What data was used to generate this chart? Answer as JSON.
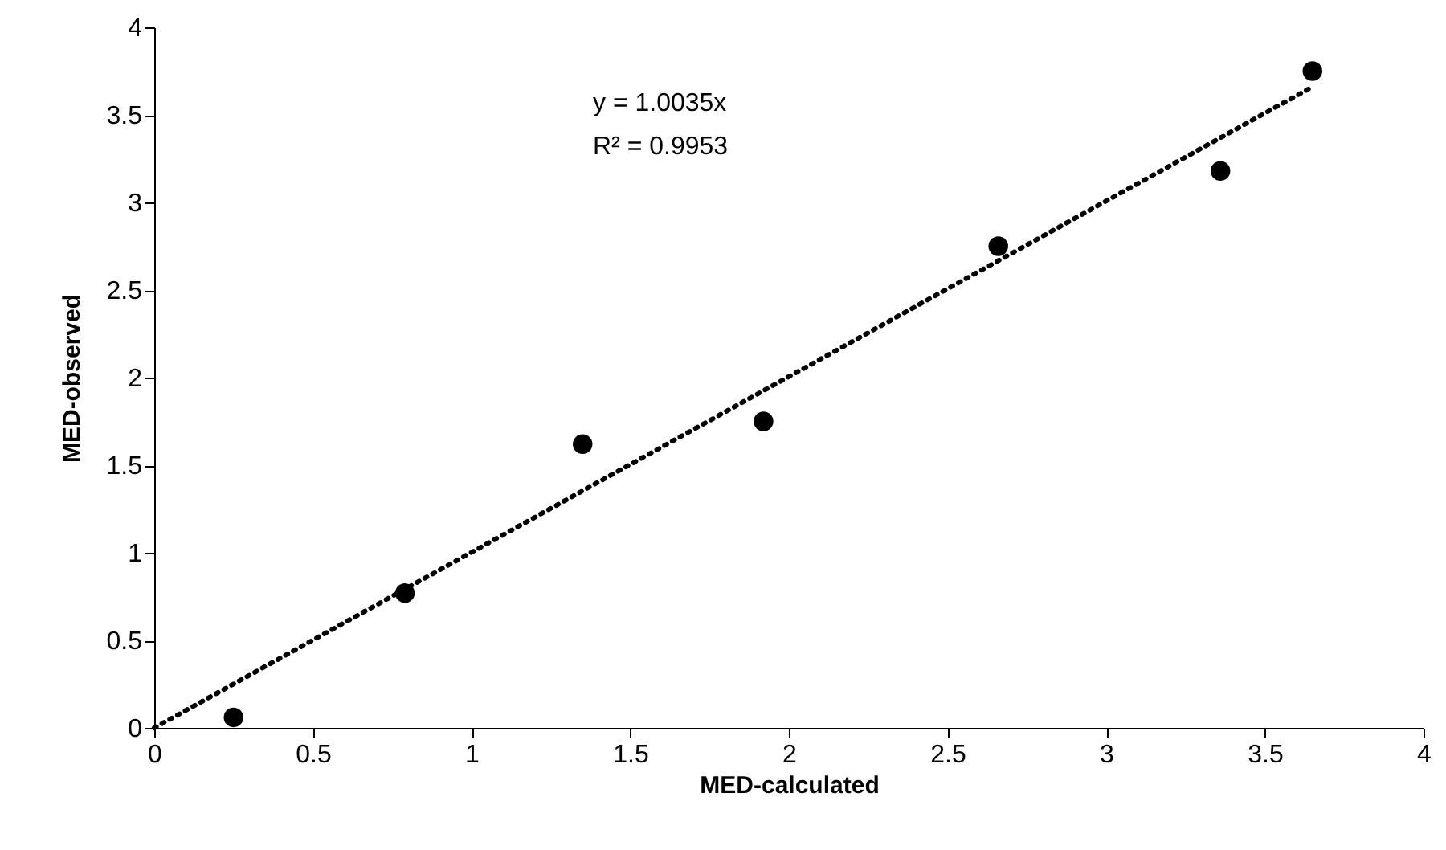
{
  "chart_data": {
    "type": "scatter",
    "xlabel": "MED-calculated",
    "ylabel": "MED-observed",
    "xlim": [
      0,
      4
    ],
    "ylim": [
      0,
      4
    ],
    "xticks": [
      0,
      0.5,
      1,
      1.5,
      2,
      2.5,
      3,
      3.5,
      4
    ],
    "yticks": [
      0,
      0.5,
      1,
      1.5,
      2,
      2.5,
      3,
      3.5,
      4
    ],
    "grid": false,
    "annotations": [
      "y = 1.0035x",
      "R² = 0.9953"
    ],
    "series": [
      {
        "type": "scatter",
        "color": "#000000",
        "marker": "circle",
        "x": [
          0.25,
          0.79,
          1.35,
          1.92,
          2.66,
          3.36,
          3.65
        ],
        "values": [
          0.06,
          0.77,
          1.62,
          1.75,
          2.75,
          3.18,
          3.75
        ]
      },
      {
        "type": "line",
        "color": "#000000",
        "line_style": "dotted",
        "x": [
          0,
          3.65
        ],
        "values": [
          0,
          3.66
        ]
      }
    ]
  }
}
